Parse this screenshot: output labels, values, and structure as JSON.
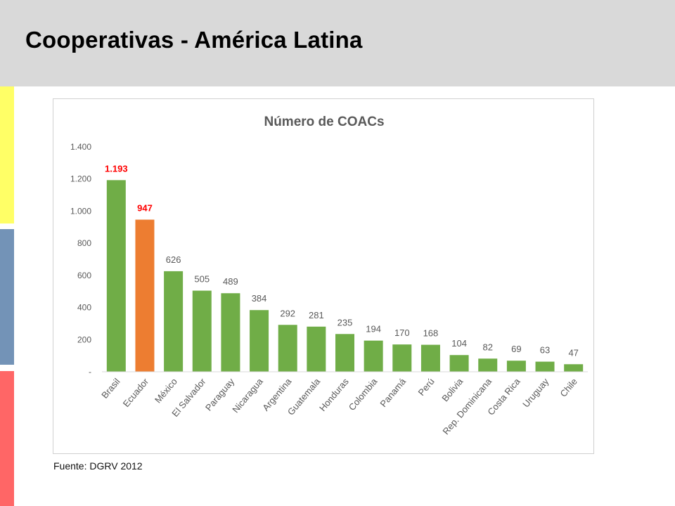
{
  "slide": {
    "title": "Cooperativas - América Latina",
    "source": "Fuente: DGRV 2012",
    "stripe_colors": [
      "#ffff66",
      "#7393b7",
      "#ff6666"
    ]
  },
  "chart_data": {
    "type": "bar",
    "title": "Número de COACs",
    "categories": [
      "Brasil",
      "Ecuador",
      "México",
      "El Salvador",
      "Paraguay",
      "Nicaragua",
      "Argentina",
      "Guatemala",
      "Honduras",
      "Colombia",
      "Panamá",
      "Perú",
      "Bolivia",
      "Rep. Dominicana",
      "Costa Rica",
      "Uruguay",
      "Chile"
    ],
    "values": [
      1193,
      947,
      626,
      505,
      489,
      384,
      292,
      281,
      235,
      194,
      170,
      168,
      104,
      82,
      69,
      63,
      47
    ],
    "data_labels": [
      "1.193",
      "947",
      "626",
      "505",
      "489",
      "384",
      "292",
      "281",
      "235",
      "194",
      "170",
      "168",
      "104",
      "82",
      "69",
      "63",
      "47"
    ],
    "highlight": {
      "0": "red",
      "1": "red"
    },
    "bar_colors": {
      "default": "#70ad47",
      "Ecuador": "#ed7d31"
    },
    "label_colors": {
      "default": "#595959",
      "highlight": "#ff0000"
    },
    "yticks": [
      0,
      200,
      400,
      600,
      800,
      1000,
      1200,
      1400
    ],
    "ytick_labels": [
      "-",
      "200",
      "400",
      "600",
      "800",
      "1.000",
      "1.200",
      "1.400"
    ],
    "ylim": [
      0,
      1400
    ],
    "grid": false,
    "legend": "none",
    "xlabel": "",
    "ylabel": ""
  }
}
